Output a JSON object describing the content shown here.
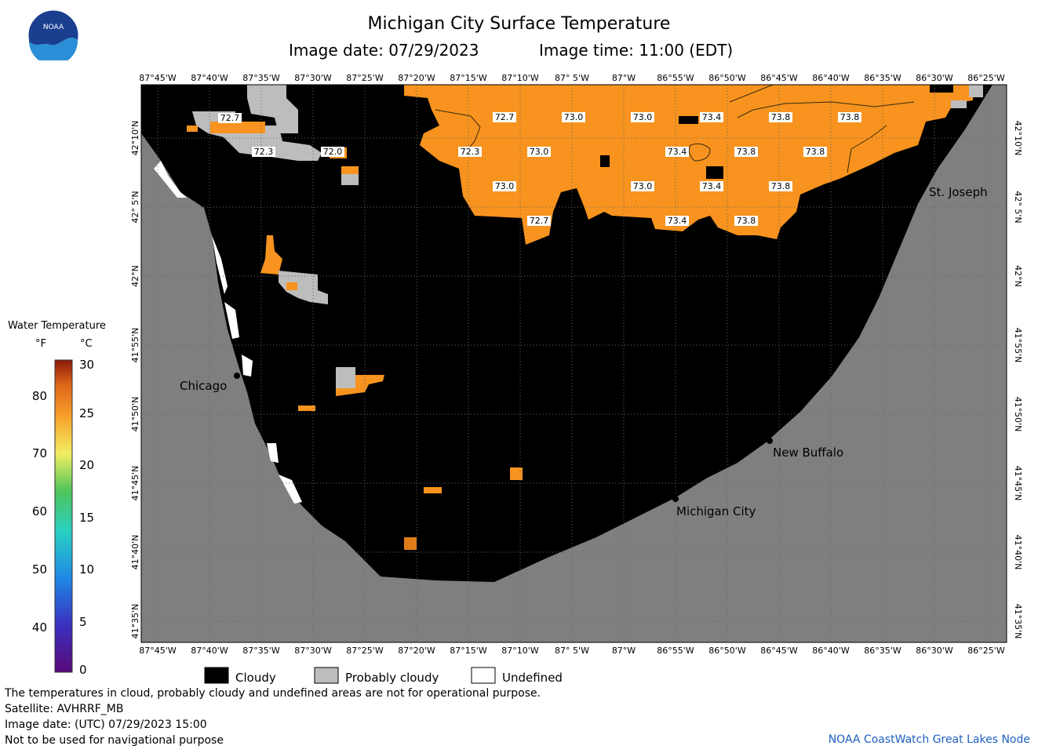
{
  "header": {
    "title": "Michigan City Surface Temperature",
    "image_date": "Image date: 07/29/2023",
    "image_time": "Image time: 11:00 (EDT)"
  },
  "logo": {
    "text": "NOAA"
  },
  "map": {
    "lon_labels": [
      "87°45'W",
      "87°40'W",
      "87°35'W",
      "87°30'W",
      "87°25'W",
      "87°20'W",
      "87°15'W",
      "87°10'W",
      "87° 5'W",
      "87°W",
      "86°55'W",
      "86°50'W",
      "86°45'W",
      "86°40'W",
      "86°35'W",
      "86°30'W",
      "86°25'W"
    ],
    "lat_labels": [
      "42°10'N",
      "42° 5'N",
      "42°N",
      "41°55'N",
      "41°50'N",
      "41°45'N",
      "41°40'N",
      "41°35'N"
    ],
    "cities": {
      "chicago": "Chicago",
      "st_joseph": "St. Joseph",
      "new_buffalo": "New Buffalo",
      "michigan_city": "Michigan City"
    },
    "temperature_labels": [
      "72.7",
      "72.3",
      "72.0",
      "72.7",
      "73.0",
      "73.0",
      "73.4",
      "73.8",
      "73.8",
      "72.3",
      "73.0",
      "73.4",
      "73.8",
      "73.8",
      "73.0",
      "73.0",
      "73.4",
      "73.8",
      "72.7",
      "73.4",
      "73.8"
    ],
    "colors": {
      "cloudy": "#000000",
      "probably_cloudy": "#bdbdbd",
      "undefined": "#ffffff",
      "land": "#7f7f7f",
      "water_temp": "#f7931e"
    }
  },
  "legend": {
    "title": "Water Temperature",
    "unit_f": "°F",
    "unit_c": "°C",
    "f_ticks": [
      "80",
      "70",
      "60",
      "50",
      "40"
    ],
    "c_ticks": [
      "30",
      "25",
      "20",
      "15",
      "10",
      "5",
      "0"
    ]
  },
  "key": {
    "cloudy": "Cloudy",
    "probably_cloudy": "Probably cloudy",
    "undefined": "Undefined"
  },
  "footer": {
    "line1": "The temperatures in cloud, probably cloudy and undefined areas are not for operational purpose.",
    "line2": "Satellite: AVHRRF_MB",
    "line3": "Image date: (UTC) 07/29/2023  15:00",
    "line4": "Not to be used for navigational purpose",
    "credit": "NOAA CoastWatch Great Lakes Node"
  }
}
